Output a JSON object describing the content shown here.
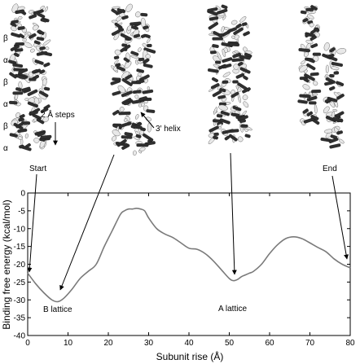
{
  "row_labels": [
    "β",
    "α",
    "β",
    "α",
    "β",
    "α"
  ],
  "annotations": {
    "steps": "2 Å steps",
    "helix": "3′ helix",
    "start": "Start",
    "end": "End",
    "b_lattice": "B lattice",
    "a_lattice": "A lattice"
  },
  "chart_data": {
    "type": "line",
    "xlabel": "Subunit rise (Å)",
    "ylabel": "Binding free energy (kcal/mol)",
    "xlim": [
      0,
      80
    ],
    "ylim": [
      -40,
      0
    ],
    "xticks": [
      0,
      10,
      20,
      30,
      40,
      50,
      60,
      70,
      80
    ],
    "yticks": [
      0,
      -5,
      -10,
      -15,
      -20,
      -25,
      -30,
      -35,
      -40
    ],
    "grid": false,
    "series": [
      {
        "color": "#7a7a7a",
        "x": [
          0,
          2,
          4,
          6,
          7.5,
          9,
          11,
          13,
          15,
          17,
          19,
          21,
          23,
          24,
          25,
          26,
          27,
          28,
          29,
          30,
          32,
          34,
          36,
          38,
          40,
          42,
          44,
          46,
          48,
          50,
          51,
          52,
          53,
          54,
          55,
          56,
          58,
          60,
          62,
          64,
          66,
          68,
          70,
          72,
          74,
          76,
          78,
          80
        ],
        "y": [
          -22.5,
          -25.5,
          -28,
          -30,
          -30.5,
          -29.5,
          -27,
          -24,
          -22,
          -20,
          -15,
          -10.5,
          -6,
          -5,
          -4.5,
          -4.5,
          -4.3,
          -4.5,
          -5,
          -7,
          -10,
          -11.5,
          -12.5,
          -14,
          -15.5,
          -15.8,
          -17,
          -19,
          -21.5,
          -24,
          -24.6,
          -24.3,
          -23.5,
          -23,
          -22.5,
          -22,
          -20,
          -17,
          -14.5,
          -12.8,
          -12.3,
          -12.8,
          -14,
          -15.3,
          -16.5,
          -18.5,
          -20,
          -21
        ]
      }
    ]
  }
}
